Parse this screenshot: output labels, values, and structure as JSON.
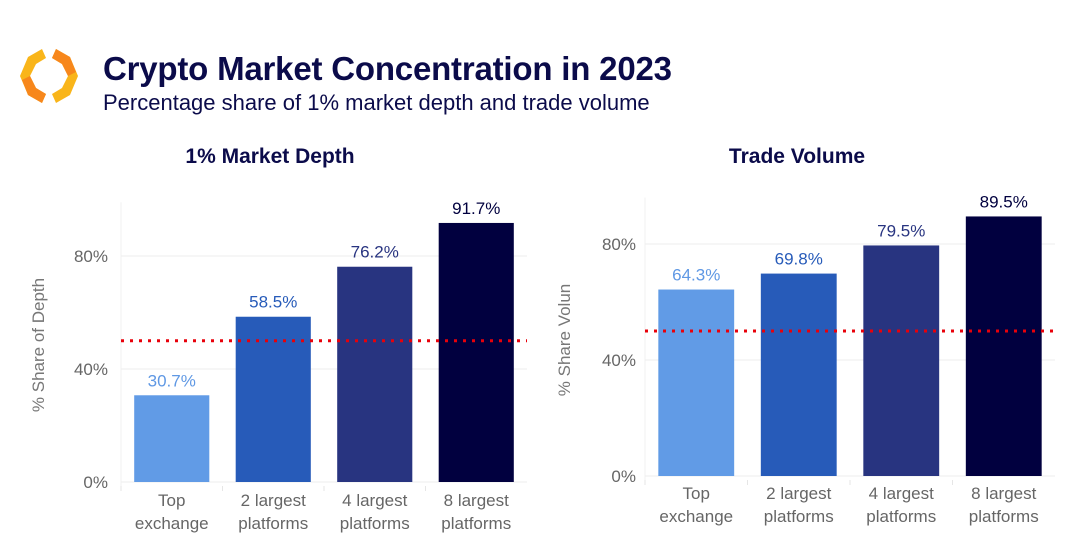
{
  "header": {
    "logo_icon": "orange-hexagon-brackets-logo",
    "title": "Crypto Market Concentration in 2023",
    "subtitle": "Percentage share of 1% market depth and trade volume"
  },
  "colors": {
    "title": "#0b0b4a",
    "bars": [
      "#619be6",
      "#275bb9",
      "#283480",
      "#01003f"
    ],
    "labels": [
      "#5f98e4",
      "#275bb9",
      "#283480",
      "#01003f"
    ],
    "reference_line": "#e8000a",
    "logo": [
      "#f9b51a",
      "#f7871c"
    ]
  },
  "chart_data": [
    {
      "type": "bar",
      "title": "1% Market Depth",
      "xlabel": "",
      "ylabel": "% Share of Depth",
      "categories": [
        [
          "Top",
          "exchange"
        ],
        [
          "2 largest",
          "platforms"
        ],
        [
          "4 largest",
          "platforms"
        ],
        [
          "8 largest",
          "platforms"
        ]
      ],
      "values": [
        30.7,
        58.5,
        76.2,
        91.7
      ],
      "data_labels": [
        "30.7%",
        "58.5%",
        "76.2%",
        "91.7%"
      ],
      "yticks": [
        0,
        40,
        80
      ],
      "ytick_labels": [
        "0%",
        "40%",
        "80%"
      ],
      "ylim": [
        -1,
        99
      ],
      "reference_line": {
        "y": 50,
        "style": "dotted",
        "color": "red"
      },
      "grid": true
    },
    {
      "type": "bar",
      "title": "Trade Volume",
      "xlabel": "",
      "ylabel": "% Share Volun",
      "categories": [
        [
          "Top",
          "exchange"
        ],
        [
          "2 largest",
          "platforms"
        ],
        [
          "4 largest",
          "platforms"
        ],
        [
          "8 largest",
          "platforms"
        ]
      ],
      "values": [
        64.3,
        69.8,
        79.5,
        89.5
      ],
      "data_labels": [
        "64.3%",
        "69.8%",
        "79.5%",
        "89.5%"
      ],
      "yticks": [
        0,
        40,
        80
      ],
      "ytick_labels": [
        "0%",
        "40%",
        "80%"
      ],
      "ylim": [
        -1,
        96
      ],
      "reference_line": {
        "y": 50,
        "style": "dotted",
        "color": "red"
      },
      "grid": true
    }
  ]
}
